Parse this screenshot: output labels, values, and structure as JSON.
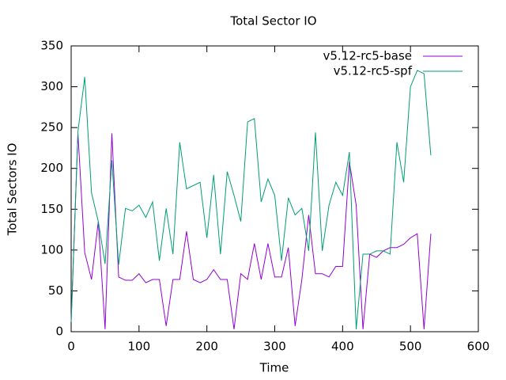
{
  "chart_data": {
    "type": "line",
    "title": "Total Sector IO",
    "xlabel": "Time",
    "ylabel": "Total Sectors IO",
    "x": [
      0,
      10,
      20,
      30,
      40,
      50,
      60,
      70,
      80,
      90,
      100,
      110,
      120,
      130,
      140,
      150,
      160,
      170,
      180,
      190,
      200,
      210,
      220,
      230,
      240,
      250,
      260,
      270,
      280,
      290,
      300,
      310,
      320,
      330,
      340,
      350,
      360,
      370,
      380,
      390,
      400,
      410,
      420,
      430,
      440,
      450,
      460,
      470,
      480,
      490,
      500,
      510,
      520,
      530
    ],
    "series": [
      {
        "name": "v5.12-rc5-base",
        "color": "#9400d3",
        "values": [
          12,
          243,
          97,
          64,
          135,
          3,
          243,
          67,
          63,
          63,
          71,
          60,
          64,
          64,
          7,
          64,
          64,
          123,
          64,
          60,
          64,
          76,
          64,
          64,
          3,
          71,
          64,
          108,
          64,
          108,
          67,
          67,
          103,
          7,
          64,
          143,
          71,
          71,
          67,
          80,
          80,
          208,
          155,
          3,
          95,
          91,
          99,
          103,
          103,
          107,
          115,
          120,
          3,
          120
        ]
      },
      {
        "name": "v5.12-rc5-spf",
        "color": "#009e73",
        "values": [
          12,
          245,
          312,
          170,
          135,
          83,
          210,
          82,
          151,
          148,
          155,
          140,
          159,
          87,
          151,
          95,
          232,
          175,
          179,
          183,
          115,
          192,
          95,
          196,
          167,
          135,
          257,
          261,
          159,
          187,
          167,
          87,
          164,
          143,
          151,
          99,
          244,
          99,
          155,
          183,
          167,
          220,
          3,
          95,
          95,
          99,
          99,
          95,
          232,
          183,
          300,
          320,
          316,
          216
        ]
      }
    ],
    "xlim": [
      0,
      600
    ],
    "xticks": [
      0,
      100,
      200,
      300,
      400,
      500,
      600
    ],
    "ylim": [
      0,
      350
    ],
    "yticks": [
      0,
      50,
      100,
      150,
      200,
      250,
      300,
      350
    ],
    "grid": false,
    "legend": "top-right"
  }
}
